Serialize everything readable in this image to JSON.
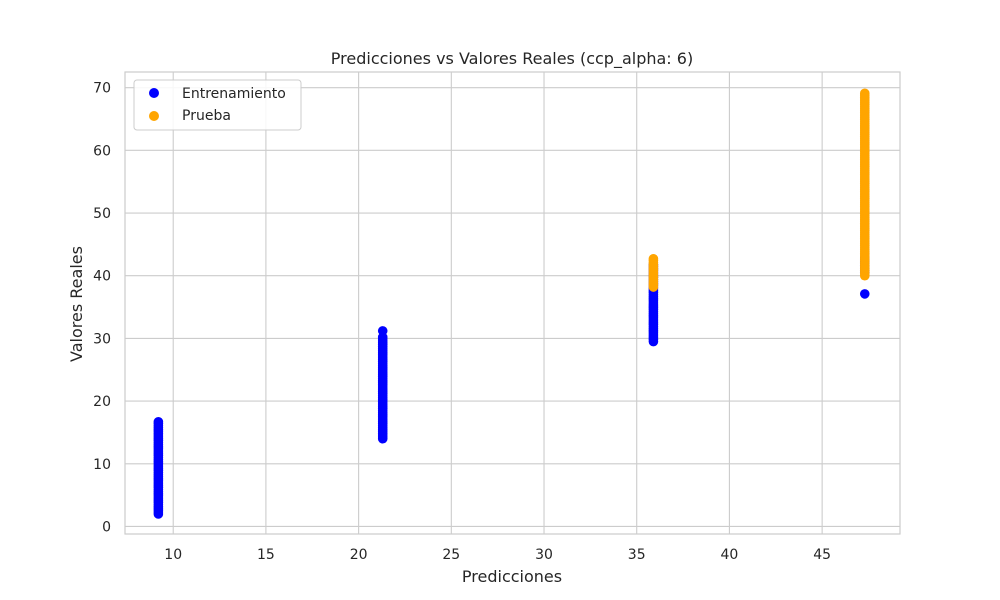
{
  "chart_data": {
    "type": "scatter",
    "title": "Predicciones vs Valores Reales (ccp_alpha: 6)",
    "xlabel": "Predicciones",
    "ylabel": "Valores Reales",
    "xlim": [
      7.4,
      49.2
    ],
    "ylim": [
      -1.2,
      72.5
    ],
    "xticks": [
      10,
      15,
      20,
      25,
      30,
      35,
      40,
      45
    ],
    "yticks": [
      0,
      10,
      20,
      30,
      40,
      50,
      60,
      70
    ],
    "grid": true,
    "legend_position": "top-left",
    "series": [
      {
        "name": "Entrenamiento",
        "color": "#0000ff",
        "groups": [
          {
            "x": 9.2,
            "y_min": 2.0,
            "y_max": 16.8,
            "extra_y": []
          },
          {
            "x": 21.3,
            "y_min": 14.0,
            "y_max": 30.2,
            "extra_y": [
              31.2
            ]
          },
          {
            "x": 35.9,
            "y_min": 29.5,
            "y_max": 42.0,
            "extra_y": []
          },
          {
            "x": 47.3,
            "y_min": 40.5,
            "y_max": 43.0,
            "extra_y": [
              37.1
            ]
          }
        ]
      },
      {
        "name": "Prueba",
        "color": "#ffa500",
        "groups": [
          {
            "x": 35.9,
            "y_min": 38.2,
            "y_max": 42.8,
            "extra_y": []
          },
          {
            "x": 47.3,
            "y_min": 40.0,
            "y_max": 69.2,
            "extra_y": []
          }
        ]
      }
    ]
  }
}
